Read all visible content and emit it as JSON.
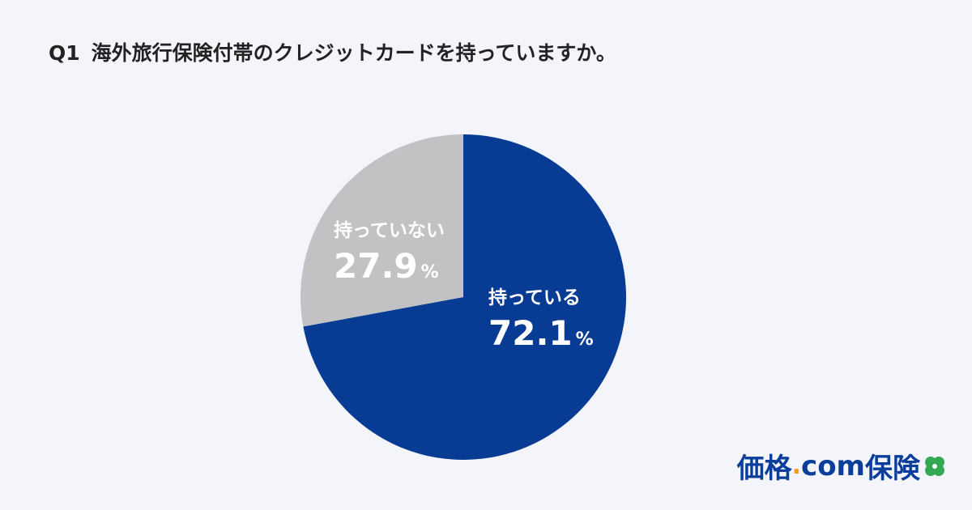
{
  "question": {
    "number": "Q1",
    "text": "海外旅行保険付帯のクレジットカードを持っていますか。"
  },
  "chart_data": {
    "type": "pie",
    "slices": [
      {
        "label": "持っている",
        "value": 72.1,
        "value_text": "72.1",
        "unit": "%",
        "color": "#083b94"
      },
      {
        "label": "持っていない",
        "value": 27.9,
        "value_text": "27.9",
        "unit": "%",
        "color": "#c2c2c5"
      }
    ],
    "start_angle_deg": 0,
    "direction": "clockwise"
  },
  "logo": {
    "brand": "価格",
    "dot": ".",
    "com": "com",
    "suffix": "保険",
    "icon": "clover-icon",
    "colors": {
      "brand": "#0a3e9a",
      "dot": "#f39a1c",
      "clover": "#34a853"
    }
  }
}
